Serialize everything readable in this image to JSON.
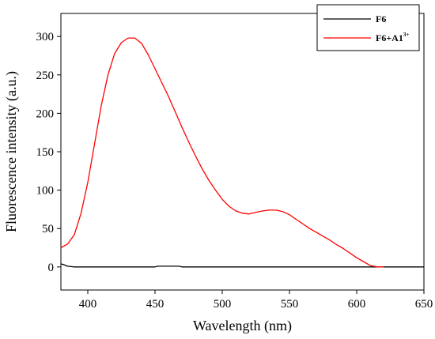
{
  "chart_data": {
    "type": "line",
    "xlabel": "Wavelength (nm)",
    "ylabel": "Fluorescence intensity (a.u.)",
    "xlim": [
      380,
      650
    ],
    "ylim": [
      -30,
      330
    ],
    "x_ticks": [
      400,
      450,
      500,
      550,
      600,
      650
    ],
    "y_ticks": [
      0,
      50,
      100,
      150,
      200,
      250,
      300
    ],
    "grid": false,
    "legend_position": "top-right",
    "series": [
      {
        "name": "F6",
        "color": "#000000",
        "x": [
          380,
          382,
          385,
          390,
          420,
          450,
          452,
          468,
          470,
          500,
          550,
          600,
          650
        ],
        "y": [
          4,
          3,
          1,
          0,
          0,
          0,
          1,
          1,
          0,
          0,
          0,
          0,
          0
        ]
      },
      {
        "name_base": "F6+A1",
        "name_sup": "3+",
        "color": "#ff0000",
        "x": [
          380,
          385,
          390,
          395,
          400,
          405,
          410,
          415,
          420,
          425,
          430,
          435,
          440,
          445,
          450,
          455,
          460,
          465,
          470,
          475,
          480,
          485,
          490,
          495,
          500,
          505,
          510,
          515,
          520,
          525,
          530,
          535,
          540,
          545,
          550,
          555,
          560,
          565,
          570,
          575,
          580,
          585,
          590,
          595,
          600,
          605,
          610,
          615,
          620
        ],
        "y": [
          25,
          30,
          42,
          70,
          110,
          160,
          210,
          250,
          278,
          292,
          298,
          298,
          291,
          276,
          258,
          240,
          222,
          202,
          182,
          163,
          145,
          128,
          113,
          100,
          88,
          79,
          73,
          70,
          69,
          71,
          73,
          74,
          74,
          72,
          68,
          62,
          56,
          50,
          45,
          40,
          35,
          29,
          24,
          18,
          12,
          7,
          2,
          0,
          0
        ]
      }
    ]
  }
}
